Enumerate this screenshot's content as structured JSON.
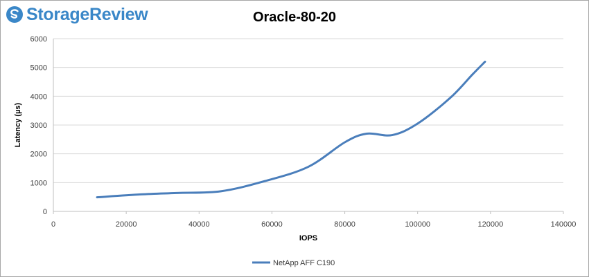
{
  "branding": {
    "logo_text": "StorageReview",
    "logo_color": "#3a87c8"
  },
  "chart_data": {
    "type": "line",
    "title": "Oracle-80-20",
    "xlabel": "IOPS",
    "ylabel": "Latency (µs)",
    "xlim": [
      0,
      140000
    ],
    "ylim": [
      0,
      6000
    ],
    "x_ticks": [
      0,
      20000,
      40000,
      60000,
      80000,
      100000,
      120000,
      140000
    ],
    "y_ticks": [
      0,
      1000,
      2000,
      3000,
      4000,
      5000,
      6000
    ],
    "grid": "horizontal",
    "legend_position": "bottom",
    "series": [
      {
        "name": "NetApp AFF C190",
        "color": "#4a7ebb",
        "points": [
          [
            12000,
            490
          ],
          [
            24000,
            590
          ],
          [
            34000,
            640
          ],
          [
            46000,
            700
          ],
          [
            58000,
            1050
          ],
          [
            70000,
            1550
          ],
          [
            80000,
            2400
          ],
          [
            86000,
            2700
          ],
          [
            93000,
            2650
          ],
          [
            100000,
            3050
          ],
          [
            109000,
            3950
          ],
          [
            115000,
            4750
          ],
          [
            118500,
            5200
          ]
        ]
      }
    ]
  }
}
